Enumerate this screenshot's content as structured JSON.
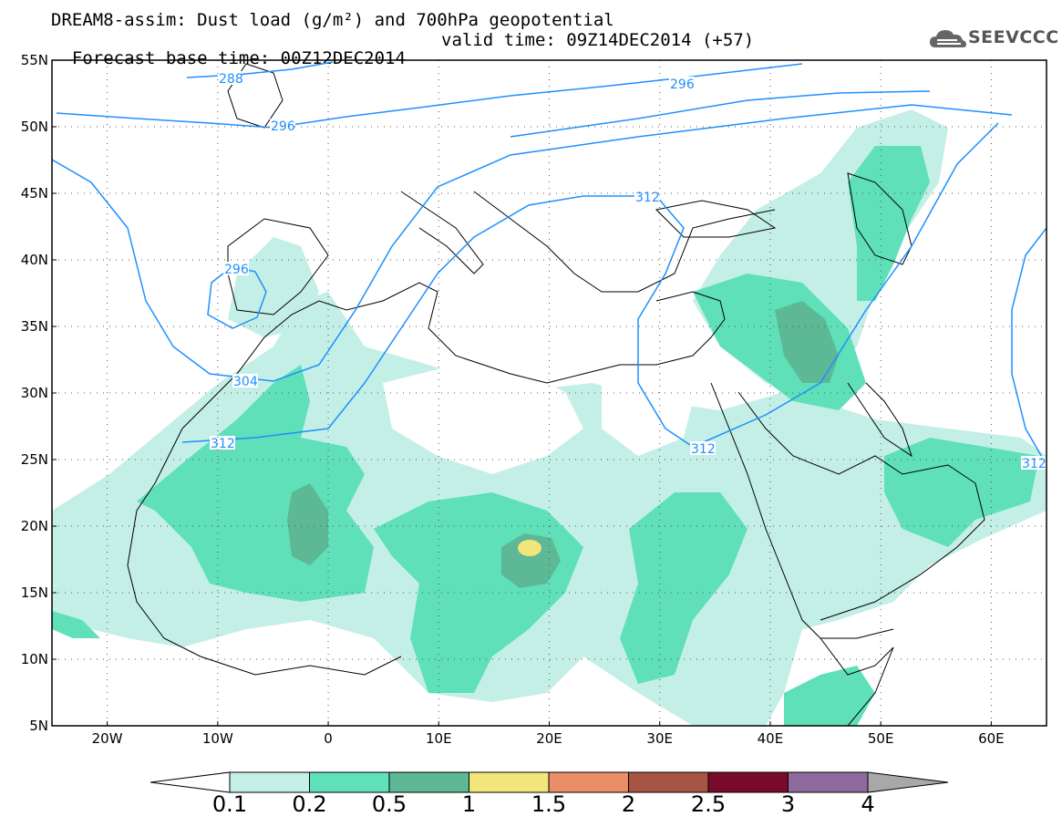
{
  "header": {
    "line1": "DREAM8-assim: Dust load (g/m²) and 700hPa geopotential",
    "line2_left": "Forecast base time: 00Z12DEC2014",
    "line2_right": "valid time: 09Z14DEC2014 (+57)"
  },
  "logo": {
    "text": "SEEVCCC",
    "icon": "cloud-logo-icon"
  },
  "axes": {
    "lat_labels": [
      "55N",
      "50N",
      "45N",
      "40N",
      "35N",
      "30N",
      "25N",
      "20N",
      "15N",
      "10N",
      "5N"
    ],
    "lon_labels": [
      "20W",
      "10W",
      "0",
      "10E",
      "20E",
      "30E",
      "40E",
      "50E",
      "60E"
    ],
    "lat_range": [
      5,
      55
    ],
    "lon_range": [
      -25,
      65
    ]
  },
  "contours": {
    "labels": [
      "288",
      "296",
      "296",
      "312",
      "296",
      "304",
      "312",
      "312",
      "312"
    ],
    "color": "#1e90ff"
  },
  "colorbar": {
    "labels": [
      "0.1",
      "0.2",
      "0.5",
      "1",
      "1.5",
      "2",
      "2.5",
      "3",
      "4"
    ],
    "colors": [
      "#c4efe6",
      "#5fe0b8",
      "#5cb895",
      "#f2e67a",
      "#e98e66",
      "#a85443",
      "#7a0a2c",
      "#8e6b9c",
      "#a8a8a8"
    ]
  },
  "colors": {
    "dust_low": "#c4efe6",
    "dust_mid": "#5fe0b8",
    "dust_high": "#5cb895",
    "dust_peak": "#f2e67a",
    "contour": "#1e90ff"
  }
}
